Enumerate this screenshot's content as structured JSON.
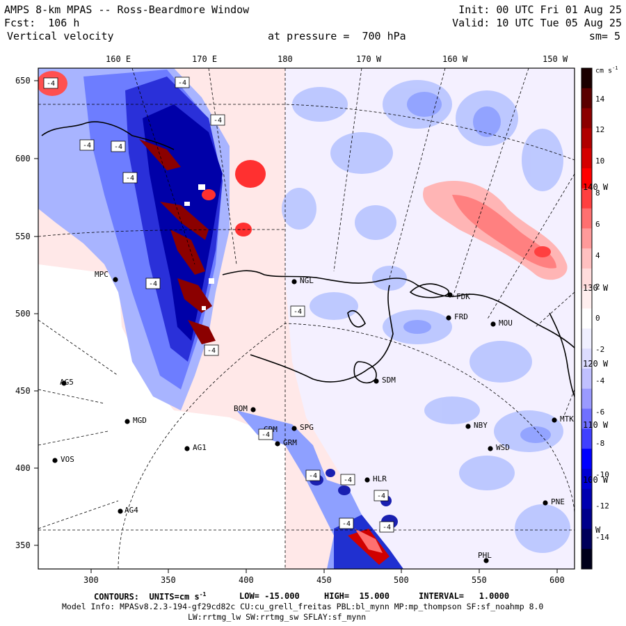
{
  "header": {
    "line1_left": "AMPS 8-km MPAS -- Ross-Beardmore Window",
    "line1_right": "Init: 00 UTC Fri 01 Aug 25",
    "line2_left": "Fcst:  106 h",
    "line2_right": "Valid: 10 UTC Tue 05 Aug 25",
    "line3_left": "Vertical velocity",
    "line3_center": "at pressure =  700 hPa",
    "line3_right": "sm= 5"
  },
  "top_longitudes": [
    "160 E",
    "170 E",
    "180",
    "170 W",
    "160 W",
    "150 W"
  ],
  "y_ticks": [
    "650",
    "600",
    "550",
    "500",
    "450",
    "400",
    "350"
  ],
  "x_ticks": [
    "300",
    "350",
    "400",
    "450",
    "500",
    "550",
    "600"
  ],
  "right_longitudes": [
    "140 W",
    "130 W",
    "120 W",
    "110 W",
    "100 W",
    "W"
  ],
  "colorbar": {
    "units": "cm s",
    "units_exp": "-1",
    "labels": [
      "14",
      "12",
      "10",
      "8",
      "6",
      "4",
      "2",
      "0",
      "-2",
      "-4",
      "-6",
      "-8",
      "-10",
      "-12",
      "-14"
    ],
    "colors": [
      "#1a0000",
      "#5a0000",
      "#8b0000",
      "#b00000",
      "#d40000",
      "#ff0000",
      "#ff4040",
      "#ff7070",
      "#ff9a9a",
      "#ffc0c0",
      "#ffdcdc",
      "#ffefef",
      "#ffffff",
      "#efefff",
      "#dcdcff",
      "#c0c0ff",
      "#9a9aff",
      "#7070ff",
      "#4040ff",
      "#0000ff",
      "#0000d4",
      "#0000b0",
      "#00008b",
      "#00005a",
      "#00001a"
    ]
  },
  "stations": [
    {
      "label": "MPC"
    },
    {
      "label": "NGL"
    },
    {
      "label": "FDK"
    },
    {
      "label": "FRD"
    },
    {
      "label": "MOU"
    },
    {
      "label": "AG5"
    },
    {
      "label": "SDM"
    },
    {
      "label": "BOM"
    },
    {
      "label": "MGD"
    },
    {
      "label": "NBY"
    },
    {
      "label": "MTK"
    },
    {
      "label": "GRM"
    },
    {
      "label": "GRM"
    },
    {
      "label": "SPG"
    },
    {
      "label": "AG1"
    },
    {
      "label": "WSD"
    },
    {
      "label": "VOS"
    },
    {
      "label": "HLR"
    },
    {
      "label": "PNE"
    },
    {
      "label": "AG4"
    },
    {
      "label": "PHL"
    }
  ],
  "contour_labels": [
    "-4",
    "-4",
    "-4",
    "-4",
    "-4",
    "-4",
    "-4",
    "-4",
    "-4",
    "-4",
    "-4",
    "-4",
    "-4",
    "-4",
    "-4"
  ],
  "footer": {
    "contours_line": "CONTOURS:  UNITS=cm s",
    "units_exp": "-1",
    "low": "LOW= -15.000",
    "high": "HIGH=  15.000",
    "interval": "INTERVAL=   1.0000",
    "model_info": "Model Info: MPASv8.2.3-194-gf29cd82c CU:cu_grell_freitas PBL:bl_mynn MP:mp_thompson SF:sf_noahmp 8.0",
    "model_info2": "LW:rrtmg_lw SW:rrtmg_sw SFLAY:sf_mynn"
  }
}
